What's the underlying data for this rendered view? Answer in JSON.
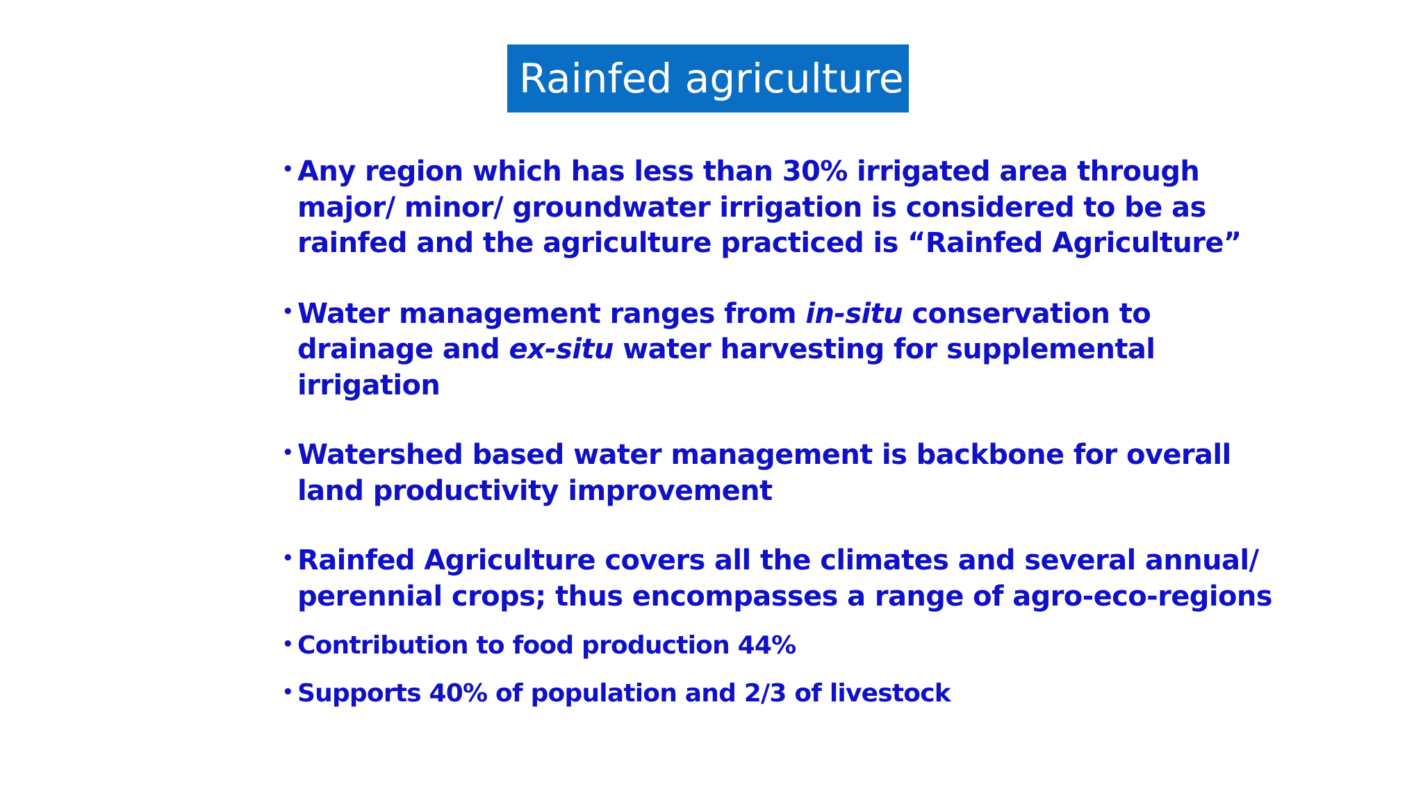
{
  "title": "Rainfed agriculture",
  "colors": {
    "title_background": "#0a6fc4",
    "title_text": "#ffffff",
    "body_text": "#1010c8"
  },
  "bullet_symbol": "•",
  "bullets": [
    {
      "lines": [
        "Any region which has less than 30% irrigated area through",
        "major/ minor/ groundwater irrigation is considered to be as",
        "rainfed  and the agriculture practiced is “Rainfed Agriculture”"
      ]
    },
    {
      "line1_a": "Water  management ranges from ",
      "line1_italic": "in-situ",
      "line1_b": " conservation to",
      "line2_a": "drainage and ",
      "line2_italic": "ex-situ",
      "line2_b": " water harvesting for supplemental",
      "line3": "irrigation"
    },
    {
      "lines": [
        "Watershed based water management is backbone for overall",
        "land productivity improvement"
      ]
    },
    {
      "lines": [
        "Rainfed Agriculture covers all the climates and several annual/",
        "perennial crops; thus encompasses a range of agro-eco-regions"
      ]
    },
    {
      "lines": [
        "Contribution to food production 44%"
      ]
    },
    {
      "lines": [
        "Supports 40% of population and 2/3 of livestock"
      ]
    }
  ]
}
